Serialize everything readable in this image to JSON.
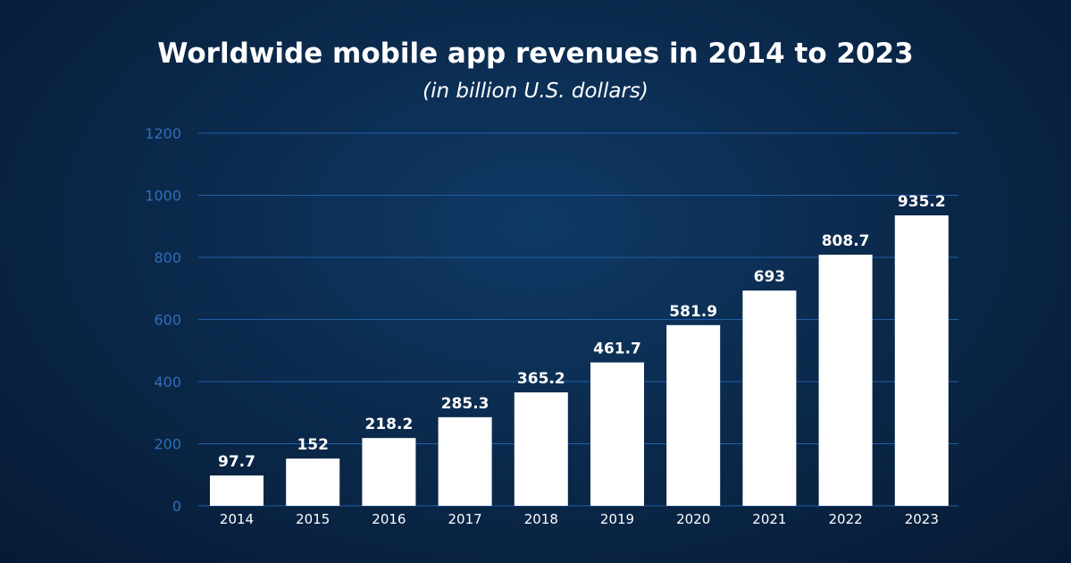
{
  "chart_data": {
    "type": "bar",
    "title": "Worldwide mobile app revenues in 2014 to 2023",
    "subtitle": "(in billion U.S. dollars)",
    "xlabel": "",
    "ylabel": "",
    "categories": [
      "2014",
      "2015",
      "2016",
      "2017",
      "2018",
      "2019",
      "2020",
      "2021",
      "2022",
      "2023"
    ],
    "values": [
      97.7,
      152,
      218.2,
      285.3,
      365.2,
      461.7,
      581.9,
      693,
      808.7,
      935.2
    ],
    "value_labels": [
      "97.7",
      "152",
      "218.2",
      "285.3",
      "365.2",
      "461.7",
      "581.9",
      "693",
      "808.7",
      "935.2"
    ],
    "ylim": [
      0,
      1200
    ],
    "yticks": [
      "0",
      "200",
      "400",
      "600",
      "800",
      "1000",
      "1200"
    ],
    "grid": true,
    "legend": "none",
    "colors": {
      "bar": "#ffffff",
      "gridline": "#1f5fa8",
      "ytick": "#2f6fb8",
      "background": "#0b2a4d"
    }
  }
}
